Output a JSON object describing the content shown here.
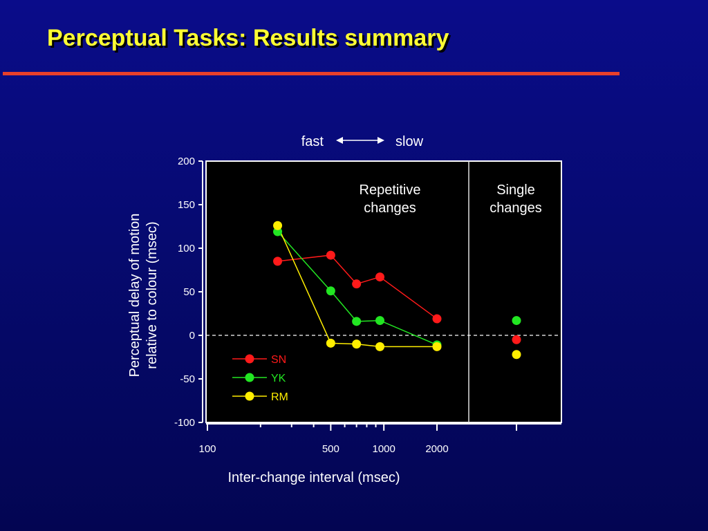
{
  "slide": {
    "title": "Perceptual Tasks: Results summary",
    "accent_color": "#e8402a",
    "title_color": "#ffff33"
  },
  "chart_data": {
    "type": "line",
    "xscale": "log",
    "ylabel": "Perceptual delay of motion relative to colour (msec)",
    "ylabel_lines": [
      "Perceptual delay of motion",
      "relative to colour (msec)"
    ],
    "xlabel": "Inter-change interval (msec)",
    "speed_labels": {
      "left": "fast",
      "right": "slow"
    },
    "ylim": [
      -100,
      200
    ],
    "yticks": [
      200,
      150,
      100,
      50,
      0,
      -50,
      -100
    ],
    "xticks": [
      100,
      500,
      1000,
      2000
    ],
    "grid": false,
    "zero_line": "dashed",
    "legend_placement": "lower-left",
    "panels": [
      {
        "name": "repetitive",
        "label_lines": [
          "Repetitive",
          "changes"
        ]
      },
      {
        "name": "single",
        "label_lines": [
          "Single",
          "changes"
        ]
      }
    ],
    "series": [
      {
        "name": "SN",
        "color": "#ff1a1a",
        "x": [
          250,
          500,
          700,
          950,
          2000
        ],
        "values": [
          85,
          92,
          59,
          67,
          19
        ],
        "single": -5
      },
      {
        "name": "YK",
        "color": "#22e622",
        "x": [
          250,
          500,
          700,
          950,
          2000
        ],
        "values": [
          119,
          51,
          16,
          17,
          -11
        ],
        "single": 17
      },
      {
        "name": "RM",
        "color": "#ffee00",
        "x": [
          250,
          500,
          700,
          950,
          2000
        ],
        "values": [
          126,
          -9,
          -10,
          -13,
          -13
        ],
        "single": -22
      }
    ]
  }
}
